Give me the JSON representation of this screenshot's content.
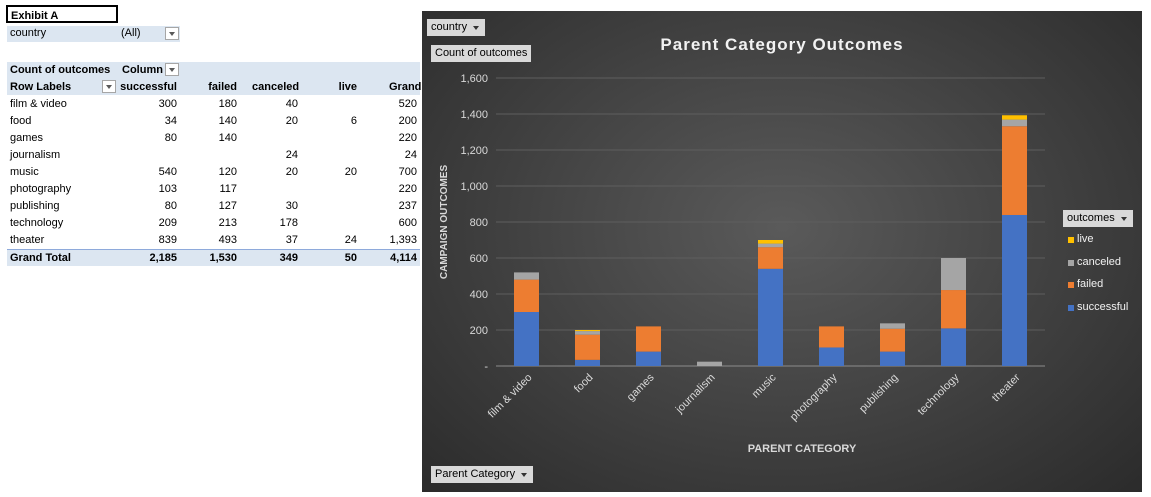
{
  "pivot": {
    "exhibit_label": "Exhibit A",
    "filter": {
      "label": "country",
      "value": "(All)"
    },
    "header": {
      "values_label": "Count of outcomes",
      "column_labels": "Column",
      "row_labels": "Row Labels",
      "columns": [
        "successful",
        "failed",
        "canceled",
        "live",
        "Grand"
      ]
    },
    "rows": [
      {
        "label": "film & video",
        "cells": [
          "300",
          "180",
          "40",
          "",
          "520"
        ]
      },
      {
        "label": "food",
        "cells": [
          "34",
          "140",
          "20",
          "6",
          "200"
        ]
      },
      {
        "label": "games",
        "cells": [
          "80",
          "140",
          "",
          "",
          "220"
        ]
      },
      {
        "label": "journalism",
        "cells": [
          "",
          "",
          "24",
          "",
          "24"
        ]
      },
      {
        "label": "music",
        "cells": [
          "540",
          "120",
          "20",
          "20",
          "700"
        ]
      },
      {
        "label": "photography",
        "cells": [
          "103",
          "117",
          "",
          "",
          "220"
        ]
      },
      {
        "label": "publishing",
        "cells": [
          "80",
          "127",
          "30",
          "",
          "237"
        ]
      },
      {
        "label": "technology",
        "cells": [
          "209",
          "213",
          "178",
          "",
          "600"
        ]
      },
      {
        "label": "theater",
        "cells": [
          "839",
          "493",
          "37",
          "24",
          "1,393"
        ]
      }
    ],
    "total": {
      "label": "Grand Total",
      "cells": [
        "2,185",
        "1,530",
        "349",
        "50",
        "4,114"
      ]
    }
  },
  "chart_buttons": {
    "country": "country",
    "values": "Count of outcomes",
    "legend": "outcomes",
    "axis": "Parent Category"
  },
  "chart_data": {
    "type": "bar",
    "stacked": true,
    "title": "Parent Category Outcomes",
    "xlabel": "PARENT CATEGORY",
    "ylabel": "CAMPAIGN OUTCOMES",
    "ylim": [
      0,
      1600
    ],
    "yticks": [
      "-",
      "200",
      "400",
      "600",
      "800",
      "1,000",
      "1,200",
      "1,400",
      "1,600"
    ],
    "categories": [
      "film & video",
      "food",
      "games",
      "journalism",
      "music",
      "photography",
      "publishing",
      "technology",
      "theater"
    ],
    "series": [
      {
        "name": "successful",
        "color": "#4472c4",
        "values": [
          300,
          34,
          80,
          0,
          540,
          103,
          80,
          209,
          839
        ]
      },
      {
        "name": "failed",
        "color": "#ed7d31",
        "values": [
          180,
          140,
          140,
          0,
          120,
          117,
          127,
          213,
          493
        ]
      },
      {
        "name": "canceled",
        "color": "#a5a5a5",
        "values": [
          40,
          20,
          0,
          24,
          20,
          0,
          30,
          178,
          37
        ]
      },
      {
        "name": "live",
        "color": "#ffc000",
        "values": [
          0,
          6,
          0,
          0,
          20,
          0,
          0,
          0,
          24
        ]
      }
    ],
    "legend_order": [
      "live",
      "canceled",
      "failed",
      "successful"
    ],
    "legend_position": "right",
    "grid": true
  }
}
